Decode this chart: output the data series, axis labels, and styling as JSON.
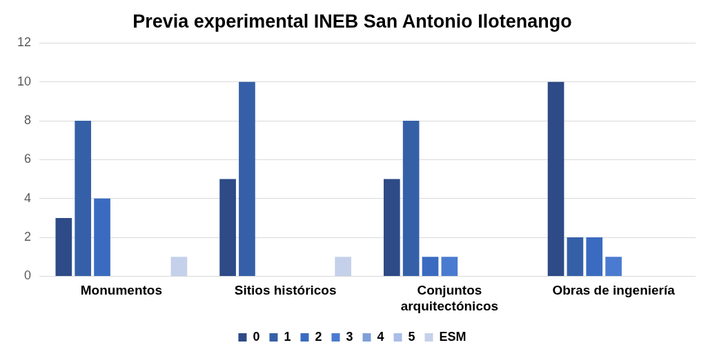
{
  "chart_data": {
    "type": "bar",
    "title": "Previa experimental INEB San Antonio Ilotenango",
    "categories": [
      "Monumentos",
      "Sitios históricos",
      "Conjuntos arquitectónicos",
      "Obras de ingeniería"
    ],
    "series": [
      {
        "name": "0",
        "color": "#2e4a87",
        "values": [
          3,
          5,
          5,
          10
        ]
      },
      {
        "name": "1",
        "color": "#3560a8",
        "values": [
          8,
          10,
          8,
          2
        ]
      },
      {
        "name": "2",
        "color": "#3a6bc0",
        "values": [
          4,
          0,
          1,
          2
        ]
      },
      {
        "name": "3",
        "color": "#4a7bd0",
        "values": [
          0,
          0,
          1,
          1
        ]
      },
      {
        "name": "4",
        "color": "#7f9fd8",
        "values": [
          0,
          0,
          0,
          0
        ]
      },
      {
        "name": "5",
        "color": "#a9bde6",
        "values": [
          0,
          0,
          0,
          0
        ]
      },
      {
        "name": "ESM",
        "color": "#c5d0ea",
        "values": [
          1,
          1,
          0,
          0
        ]
      }
    ],
    "ylim": [
      0,
      12
    ],
    "yticks": [
      0,
      2,
      4,
      6,
      8,
      10,
      12
    ],
    "grid": "y",
    "legend": "bottom"
  }
}
